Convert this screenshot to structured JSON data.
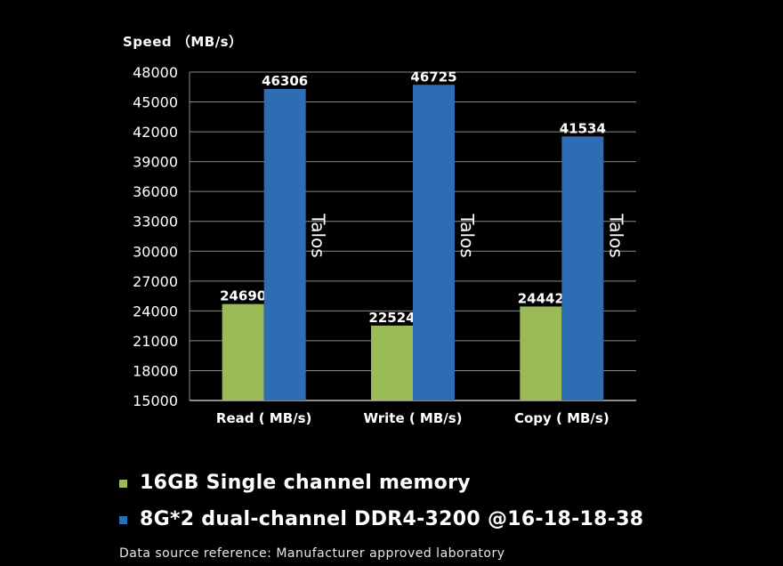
{
  "chart_data": {
    "type": "bar",
    "ylabel": "Speed （MB/s）",
    "categories": [
      "Read ( MB/s)",
      "Write ( MB/s)",
      "Copy ( MB/s)"
    ],
    "series": [
      {
        "name": "16GB Single channel memory",
        "color": "#9bbb59",
        "values": [
          24690,
          22524,
          24442
        ]
      },
      {
        "name": "8G*2 dual-channel DDR4-3200 @16-18-18-38",
        "color": "#2e6db4",
        "values": [
          46306,
          46725,
          41534
        ]
      }
    ],
    "bar_annotation": "Talos",
    "ylim": [
      15000,
      48000
    ],
    "yticks": [
      "48000",
      "45000",
      "42000",
      "39000",
      "36000",
      "33000",
      "30000",
      "27000",
      "24000",
      "21000",
      "18000",
      "15000"
    ],
    "grid": true,
    "legend_position": "bottom"
  },
  "footer": {
    "source": "Data source reference: Manufacturer approved laboratory"
  }
}
